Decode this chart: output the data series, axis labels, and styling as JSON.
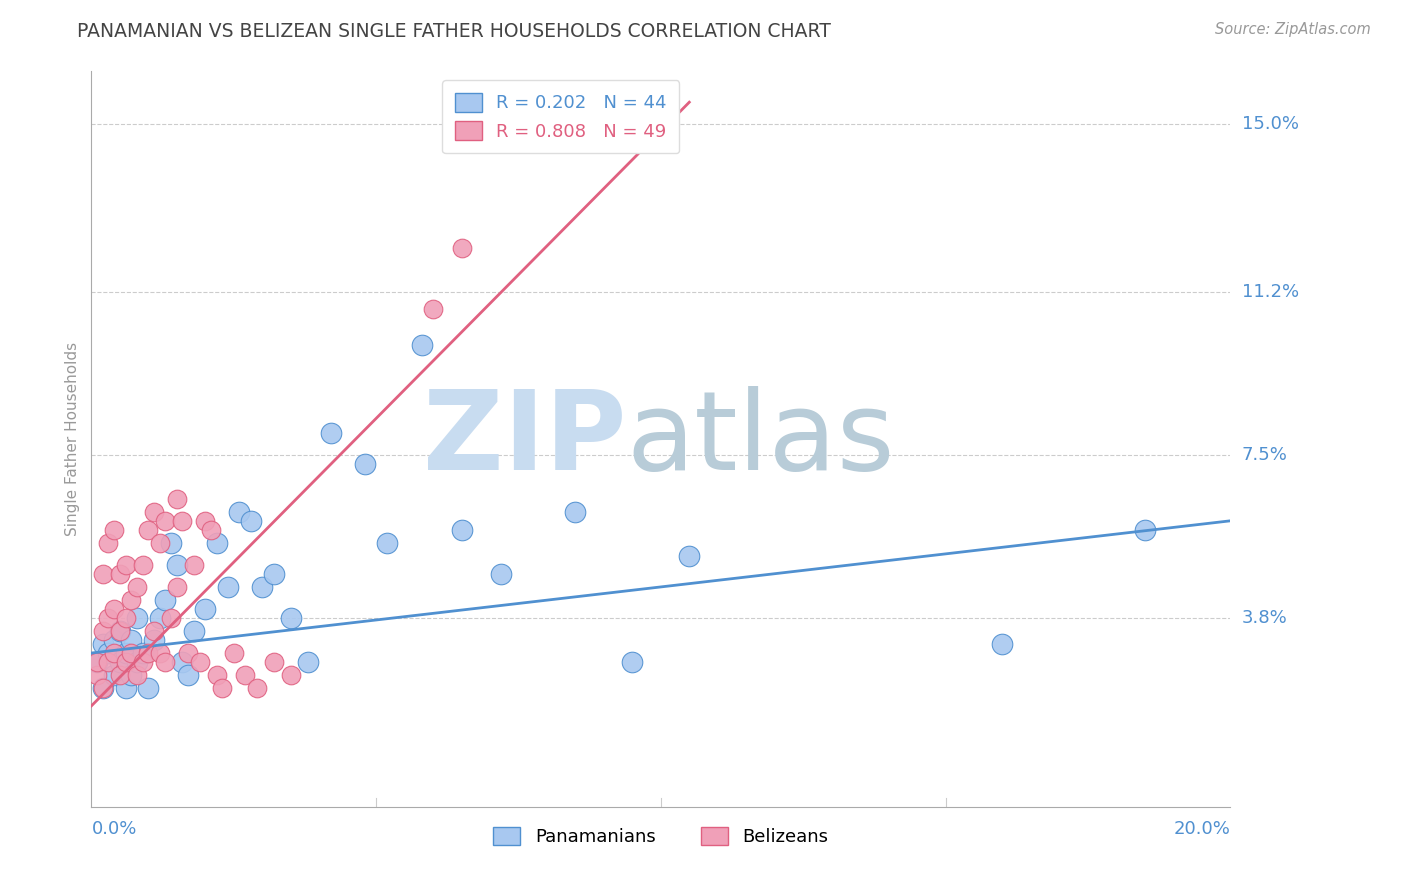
{
  "title": "PANAMANIAN VS BELIZEAN SINGLE FATHER HOUSEHOLDS CORRELATION CHART",
  "source": "Source: ZipAtlas.com",
  "ylabel": "Single Father Households",
  "xlim": [
    0.0,
    0.2
  ],
  "ylim": [
    -0.005,
    0.162
  ],
  "legend_blue_r": "0.202",
  "legend_blue_n": "44",
  "legend_pink_r": "0.808",
  "legend_pink_n": "49",
  "blue_color": "#A8C8F0",
  "pink_color": "#F0A0B8",
  "line_blue": "#5090D0",
  "line_pink": "#E06080",
  "ytick_vals": [
    0.038,
    0.075,
    0.112,
    0.15
  ],
  "ytick_labels": [
    "3.8%",
    "7.5%",
    "11.2%",
    "15.0%"
  ],
  "xtick_vals": [
    0.05,
    0.1,
    0.15
  ],
  "blue_points_x": [
    0.001,
    0.002,
    0.002,
    0.003,
    0.004,
    0.004,
    0.005,
    0.005,
    0.006,
    0.006,
    0.007,
    0.007,
    0.008,
    0.008,
    0.009,
    0.01,
    0.011,
    0.012,
    0.013,
    0.014,
    0.015,
    0.016,
    0.017,
    0.018,
    0.02,
    0.022,
    0.024,
    0.026,
    0.028,
    0.03,
    0.032,
    0.035,
    0.038,
    0.042,
    0.048,
    0.052,
    0.058,
    0.065,
    0.072,
    0.085,
    0.095,
    0.105,
    0.16,
    0.185
  ],
  "blue_points_y": [
    0.028,
    0.022,
    0.032,
    0.03,
    0.025,
    0.033,
    0.028,
    0.035,
    0.03,
    0.022,
    0.025,
    0.033,
    0.028,
    0.038,
    0.03,
    0.022,
    0.033,
    0.038,
    0.042,
    0.055,
    0.05,
    0.028,
    0.025,
    0.035,
    0.04,
    0.055,
    0.045,
    0.062,
    0.06,
    0.045,
    0.048,
    0.038,
    0.028,
    0.08,
    0.073,
    0.055,
    0.1,
    0.058,
    0.048,
    0.062,
    0.028,
    0.052,
    0.032,
    0.058
  ],
  "pink_points_x": [
    0.001,
    0.001,
    0.002,
    0.002,
    0.002,
    0.003,
    0.003,
    0.003,
    0.004,
    0.004,
    0.004,
    0.005,
    0.005,
    0.005,
    0.006,
    0.006,
    0.006,
    0.007,
    0.007,
    0.008,
    0.008,
    0.009,
    0.009,
    0.01,
    0.01,
    0.011,
    0.011,
    0.012,
    0.012,
    0.013,
    0.013,
    0.014,
    0.015,
    0.015,
    0.016,
    0.017,
    0.018,
    0.019,
    0.02,
    0.021,
    0.022,
    0.023,
    0.025,
    0.027,
    0.029,
    0.032,
    0.035,
    0.06,
    0.065
  ],
  "pink_points_y": [
    0.025,
    0.028,
    0.022,
    0.035,
    0.048,
    0.028,
    0.038,
    0.055,
    0.03,
    0.04,
    0.058,
    0.025,
    0.035,
    0.048,
    0.028,
    0.038,
    0.05,
    0.03,
    0.042,
    0.025,
    0.045,
    0.028,
    0.05,
    0.03,
    0.058,
    0.035,
    0.062,
    0.03,
    0.055,
    0.028,
    0.06,
    0.038,
    0.045,
    0.065,
    0.06,
    0.03,
    0.05,
    0.028,
    0.06,
    0.058,
    0.025,
    0.022,
    0.03,
    0.025,
    0.022,
    0.028,
    0.025,
    0.108,
    0.122
  ],
  "blue_line_x": [
    0.0,
    0.2
  ],
  "blue_line_y": [
    0.03,
    0.06
  ],
  "pink_line_x": [
    0.0,
    0.105
  ],
  "pink_line_y": [
    0.018,
    0.155
  ]
}
